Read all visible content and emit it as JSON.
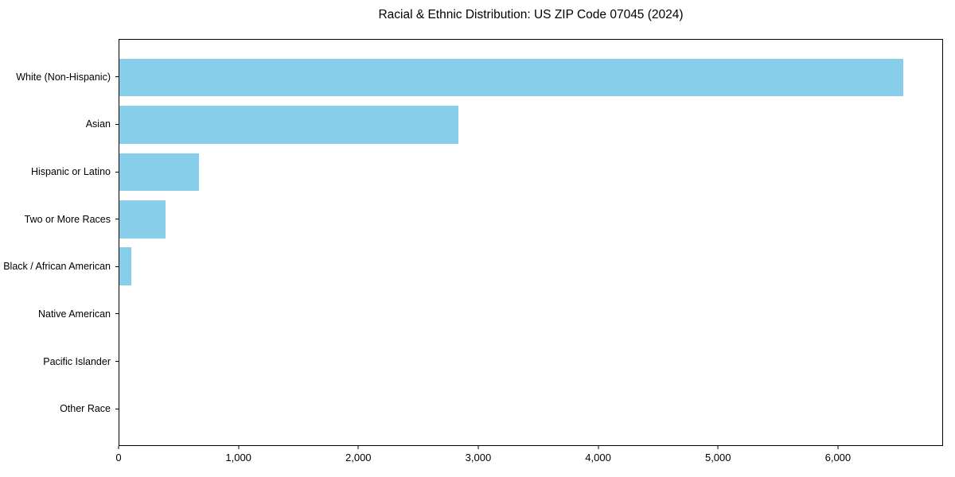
{
  "chart_data": {
    "type": "bar",
    "orientation": "horizontal",
    "title": "Racial & Ethnic Distribution: US ZIP Code 07045 (2024)",
    "categories": [
      "White (Non-Hispanic)",
      "Asian",
      "Hispanic or Latino",
      "Two or More Races",
      "Black / African American",
      "Native American",
      "Pacific Islander",
      "Other Race"
    ],
    "values": [
      6550,
      2835,
      665,
      385,
      100,
      0,
      0,
      0
    ],
    "bar_color": "#87CEEB",
    "xlabel": "",
    "ylabel": "",
    "xlim": [
      0,
      6877
    ],
    "xticks": [
      0,
      1000,
      2000,
      3000,
      4000,
      5000,
      6000
    ],
    "xtick_labels": [
      "0",
      "1,000",
      "2,000",
      "3,000",
      "4,000",
      "5,000",
      "6,000"
    ],
    "grid": false,
    "legend": null,
    "axis_color": "#000000",
    "text_color": "#000000",
    "background_color": "#ffffff"
  }
}
